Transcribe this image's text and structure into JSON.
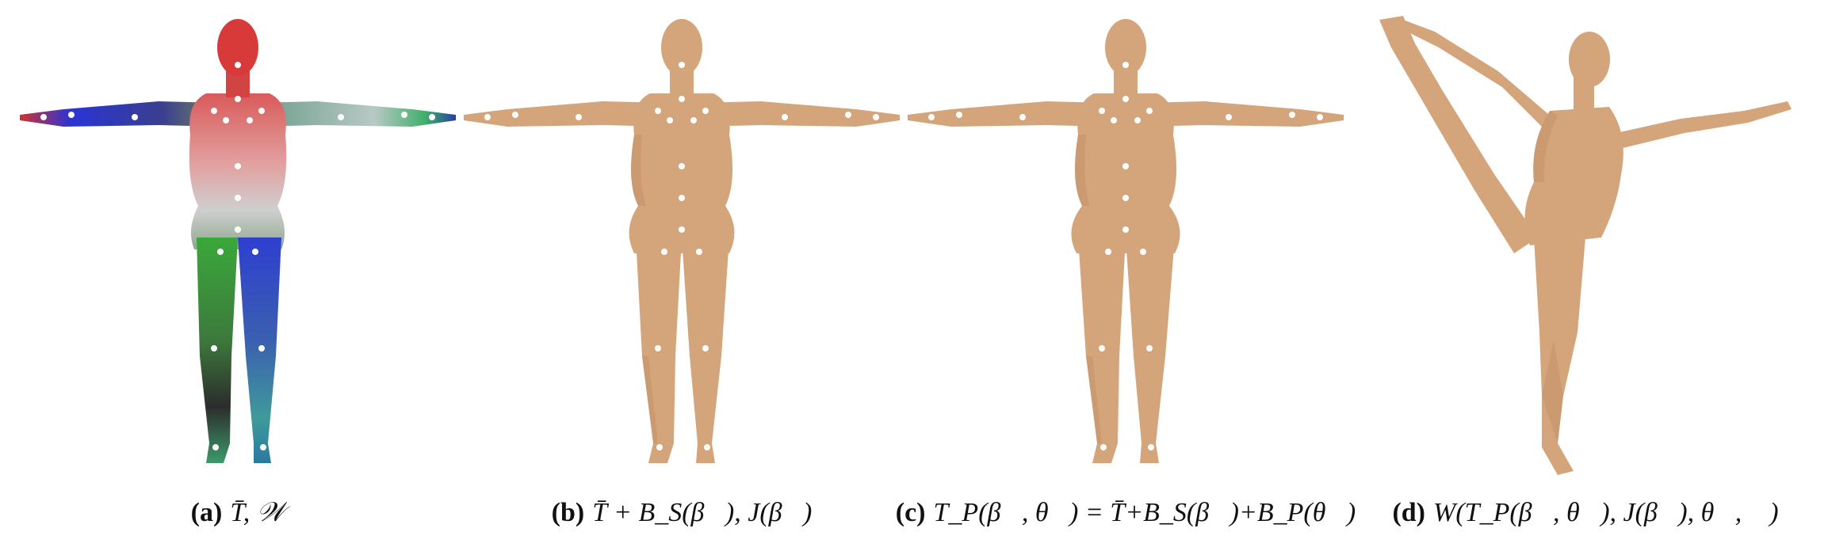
{
  "figure": {
    "panels": [
      {
        "id": "a",
        "label": "(a)",
        "math": "T̄, 𝒲",
        "render": "skinning-weights",
        "pose": "t-pose"
      },
      {
        "id": "b",
        "label": "(b)",
        "math": "T̄ + B_S(β⃗), J(β⃗)",
        "render": "skin",
        "pose": "t-pose"
      },
      {
        "id": "c",
        "label": "(c)",
        "math": "T_P(β⃗, θ⃗) = T̄+B_S(β⃗)+B_P(θ⃗)",
        "render": "skin",
        "pose": "t-pose"
      },
      {
        "id": "d",
        "label": "(d)",
        "math": "W(T_P(β⃗, θ⃗), J(β⃗), θ⃗, 𝒲)",
        "render": "skin",
        "pose": "yoga-standing-split"
      }
    ],
    "colors": {
      "skin": "#d4a47a",
      "skin_shadow": "#b98a60",
      "weights_head": "#d83a3a",
      "weights_left_arm": "#2a34d6",
      "weights_right_arm": "#3fb06a",
      "weights_left_leg": "#3aa83a",
      "weights_right_leg": "#2f3fd0",
      "weights_torso": "#d97a7a",
      "joint": "#ffffff"
    }
  }
}
